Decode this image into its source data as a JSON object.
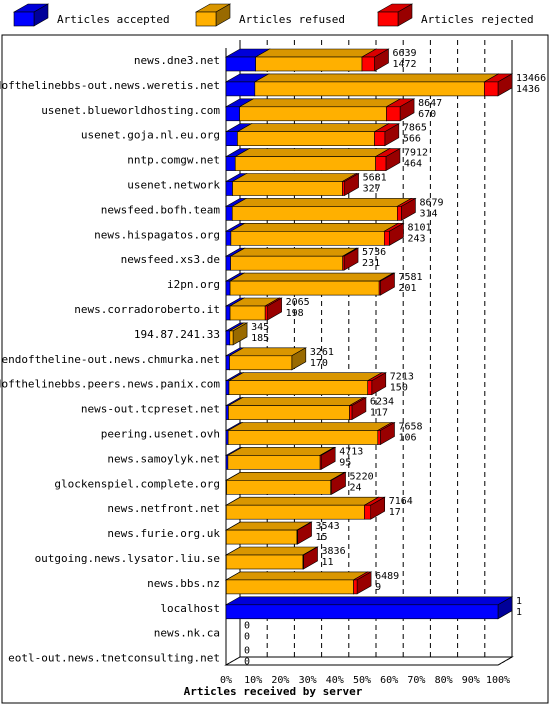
{
  "chart_data": {
    "type": "bar",
    "orientation": "horizontal",
    "stacked": true,
    "xlabel": "Articles received by server",
    "xlim": [
      0,
      100
    ],
    "x_ticks": [
      "0%",
      "10%",
      "20%",
      "30%",
      "40%",
      "50%",
      "60%",
      "70%",
      "80%",
      "90%",
      "100%"
    ],
    "legend_position": "top",
    "grid": true,
    "series": [
      {
        "name": "Articles accepted",
        "color": "#0000ff"
      },
      {
        "name": "Articles refused",
        "color": "#ffb000"
      },
      {
        "name": "Articles rejected",
        "color": "#ff0000"
      }
    ],
    "rows": [
      {
        "name": "news.dne3.net",
        "pct": [
          10.9,
          39.1,
          4.6
        ],
        "total": "6639",
        "accepted": "1472"
      },
      {
        "name": "endofthelinebbs-out.news.weretis.net",
        "pct": [
          10.6,
          84.4,
          5.0
        ],
        "total": "13466",
        "accepted": "1436"
      },
      {
        "name": "usenet.blueworldhosting.com",
        "pct": [
          5.0,
          54.0,
          5.0
        ],
        "total": "8647",
        "accepted": "670"
      },
      {
        "name": "usenet.goja.nl.eu.org",
        "pct": [
          4.2,
          50.4,
          3.8
        ],
        "total": "7865",
        "accepted": "566"
      },
      {
        "name": "nntp.comgw.net",
        "pct": [
          3.4,
          51.6,
          3.8
        ],
        "total": "7912",
        "accepted": "464"
      },
      {
        "name": "usenet.network",
        "pct": [
          2.4,
          40.4,
          0.8
        ],
        "total": "5681",
        "accepted": "327"
      },
      {
        "name": "newsfeed.bofh.team",
        "pct": [
          2.3,
          60.7,
          1.5
        ],
        "total": "8679",
        "accepted": "314"
      },
      {
        "name": "news.hispagatos.org",
        "pct": [
          1.8,
          56.4,
          1.9
        ],
        "total": "8101",
        "accepted": "243"
      },
      {
        "name": "newsfeed.xs3.de",
        "pct": [
          1.7,
          41.2,
          0.5
        ],
        "total": "5736",
        "accepted": "231"
      },
      {
        "name": "i2pn.org",
        "pct": [
          1.5,
          54.8,
          0.5
        ],
        "total": "7581",
        "accepted": "201"
      },
      {
        "name": "news.corradoroberto.it",
        "pct": [
          1.5,
          12.9,
          0.9
        ],
        "total": "2065",
        "accepted": "198"
      },
      {
        "name": "194.87.241.33",
        "pct": [
          1.4,
          1.2,
          0
        ],
        "total": "345",
        "accepted": "185"
      },
      {
        "name": "endoftheline-out.news.chmurka.net",
        "pct": [
          1.3,
          22.9,
          0
        ],
        "total": "3261",
        "accepted": "170"
      },
      {
        "name": "endofthelinebbs.peers.news.panix.com",
        "pct": [
          1.1,
          51.0,
          1.5
        ],
        "total": "7213",
        "accepted": "150"
      },
      {
        "name": "news-out.tcpreset.net",
        "pct": [
          0.9,
          44.5,
          0.9
        ],
        "total": "6234",
        "accepted": "117"
      },
      {
        "name": "peering.usenet.ovh",
        "pct": [
          0.8,
          55.0,
          1.0
        ],
        "total": "7658",
        "accepted": "106"
      },
      {
        "name": "news.samoylyk.net",
        "pct": [
          0.7,
          33.9,
          0.4
        ],
        "total": "4713",
        "accepted": "95"
      },
      {
        "name": "glockenspiel.complete.org",
        "pct": [
          0.2,
          38.3,
          0.3
        ],
        "total": "5220",
        "accepted": "24"
      },
      {
        "name": "news.netfront.net",
        "pct": [
          0.1,
          50.8,
          2.3
        ],
        "total": "7164",
        "accepted": "17"
      },
      {
        "name": "news.furie.org.uk",
        "pct": [
          0.1,
          26.0,
          0.2
        ],
        "total": "3543",
        "accepted": "15"
      },
      {
        "name": "outgoing.news.lysator.liu.se",
        "pct": [
          0.1,
          28.2,
          0.2
        ],
        "total": "3836",
        "accepted": "11"
      },
      {
        "name": "news.bbs.nz",
        "pct": [
          0.1,
          46.8,
          1.3
        ],
        "total": "6489",
        "accepted": "9"
      },
      {
        "name": "localhost",
        "pct": [
          100,
          0,
          0
        ],
        "total": "1",
        "accepted": "1"
      },
      {
        "name": "news.nk.ca",
        "pct": [
          0,
          0,
          0
        ],
        "total": "0",
        "accepted": "0"
      },
      {
        "name": "eotl-out.news.tnetconsulting.net",
        "pct": [
          0,
          0,
          0
        ],
        "total": "0",
        "accepted": "0"
      }
    ]
  }
}
